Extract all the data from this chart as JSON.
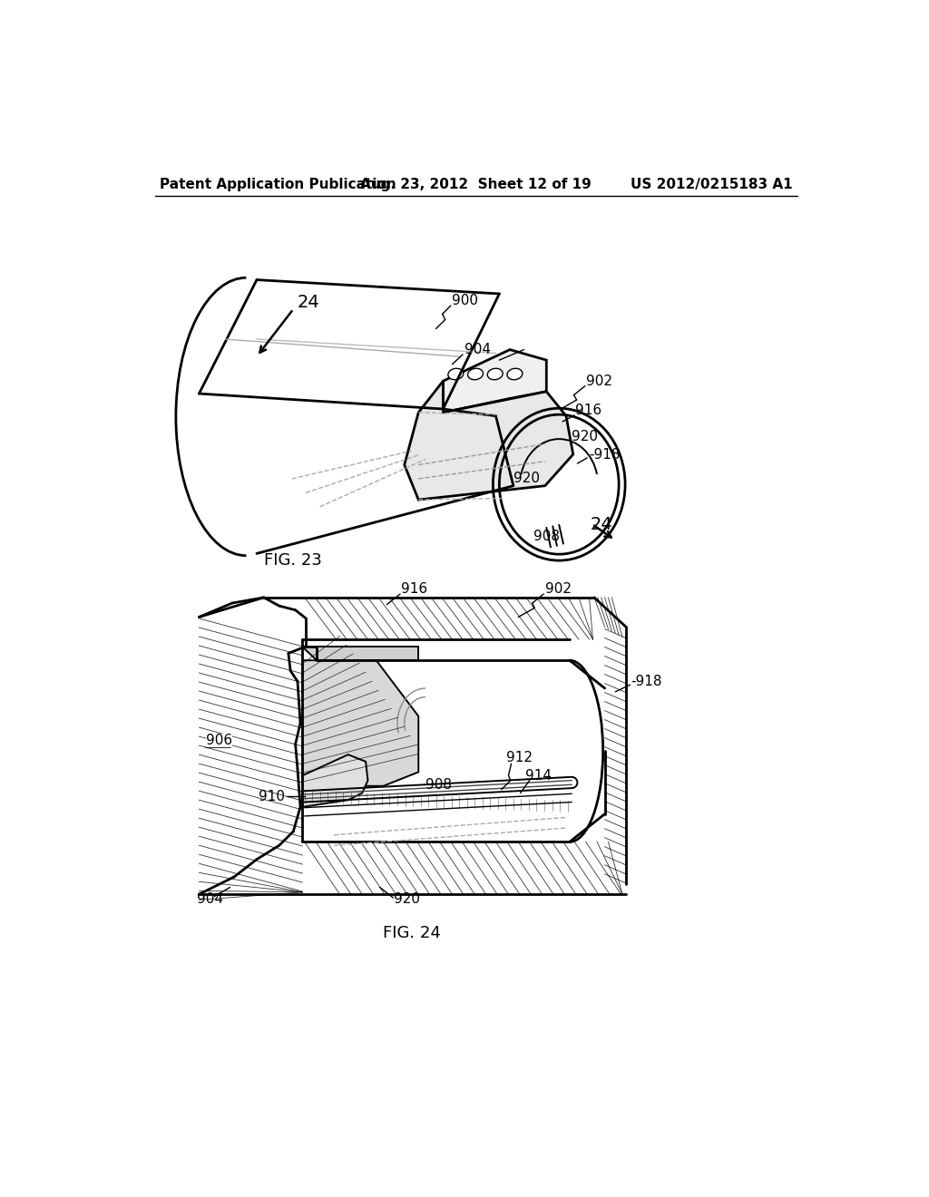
{
  "bg_color": "#ffffff",
  "fig_width": 10.24,
  "fig_height": 13.2,
  "header_left": "Patent Application Publication",
  "header_center": "Aug. 23, 2012  Sheet 12 of 19",
  "header_right": "US 2012/0215183 A1",
  "header_fontsize": 11,
  "fig23_label": "FIG. 23",
  "fig24_label": "FIG. 24"
}
